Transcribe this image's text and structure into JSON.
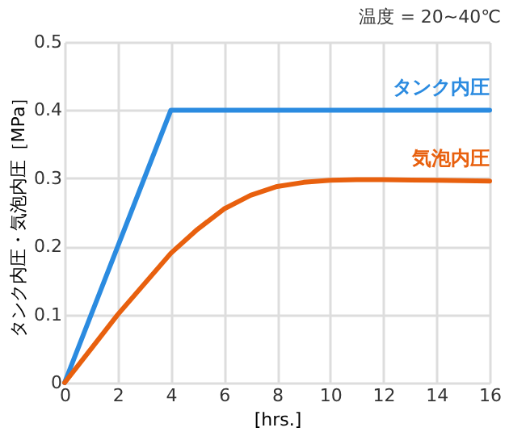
{
  "chart_data": {
    "type": "line",
    "xlabel": "[hrs.]",
    "ylabel": "タンク内圧・気泡内圧［MPa］",
    "annotations": [
      "温度 = 20~40℃"
    ],
    "xlim": [
      0,
      16
    ],
    "xticks": [
      0,
      2,
      4,
      6,
      8,
      10,
      12,
      14,
      16
    ],
    "ylim": [
      0,
      0.5
    ],
    "yticks": [
      {
        "value": 0,
        "label": "0"
      },
      0.1,
      0.2,
      0.3,
      0.4,
      0.5
    ],
    "grid": true,
    "legend": false,
    "line_style": "solid",
    "marker": "none",
    "series": [
      {
        "name": "タンク内圧",
        "color": "#2b8be0",
        "x": [
          0,
          4,
          16
        ],
        "values": [
          0,
          0.4,
          0.4
        ]
      },
      {
        "name": "気泡内圧",
        "color": "#e8600e",
        "x": [
          0,
          1,
          2,
          3,
          4,
          5,
          6,
          7,
          8,
          9,
          10,
          11,
          12,
          14,
          16
        ],
        "values": [
          0,
          0.05,
          0.1,
          0.145,
          0.19,
          0.225,
          0.255,
          0.275,
          0.288,
          0.294,
          0.297,
          0.298,
          0.298,
          0.297,
          0.296
        ]
      }
    ]
  }
}
